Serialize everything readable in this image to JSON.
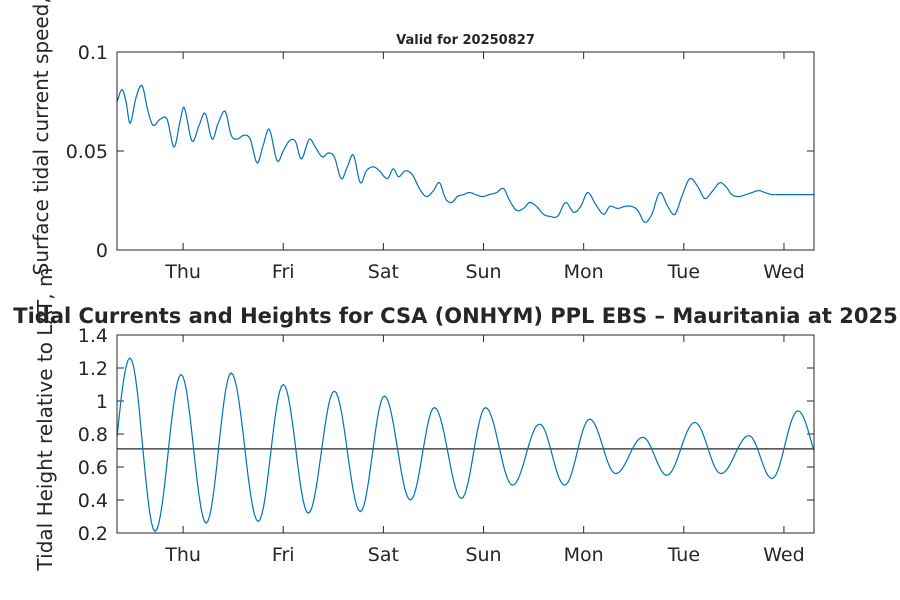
{
  "chart_data": [
    {
      "type": "line",
      "title": "Valid for 20250827",
      "ylabel": "Surface tidal current speed, kn",
      "ylim": [
        0,
        0.1
      ],
      "yticks": [
        0,
        0.05,
        0.1
      ],
      "ytick_labels": [
        "0",
        "0.05",
        "0.1"
      ],
      "xlim": [
        0,
        6.96
      ],
      "xticks": [
        0.66,
        1.66,
        2.66,
        3.66,
        4.66,
        5.66,
        6.66
      ],
      "xtick_labels": [
        "Thu",
        "Fri",
        "Sat",
        "Sun",
        "Mon",
        "Tue",
        "Wed"
      ],
      "grid": false,
      "series": [
        {
          "color": "#0072bd",
          "x": [
            0.0,
            0.05,
            0.09,
            0.13,
            0.19,
            0.25,
            0.31,
            0.36,
            0.43,
            0.5,
            0.57,
            0.63,
            0.67,
            0.75,
            0.82,
            0.88,
            0.95,
            1.01,
            1.08,
            1.14,
            1.2,
            1.27,
            1.33,
            1.4,
            1.46,
            1.52,
            1.6,
            1.66,
            1.72,
            1.78,
            1.84,
            1.92,
            1.98,
            2.05,
            2.11,
            2.17,
            2.24,
            2.3,
            2.36,
            2.43,
            2.49,
            2.56,
            2.62,
            2.7,
            2.76,
            2.81,
            2.88,
            2.95,
            3.02,
            3.09,
            3.16,
            3.22,
            3.28,
            3.34,
            3.4,
            3.46,
            3.52,
            3.58,
            3.65,
            3.72,
            3.79,
            3.86,
            3.92,
            3.99,
            4.06,
            4.12,
            4.19,
            4.26,
            4.32,
            4.4,
            4.48,
            4.56,
            4.63,
            4.7,
            4.78,
            4.86,
            4.92,
            5.0,
            5.07,
            5.14,
            5.2,
            5.27,
            5.34,
            5.42,
            5.5,
            5.57,
            5.64,
            5.72,
            5.8,
            5.87,
            5.95,
            6.02,
            6.08,
            6.14,
            6.21,
            6.28,
            6.34,
            6.41,
            6.47,
            6.54,
            6.61,
            6.67,
            6.74,
            6.81,
            6.86,
            6.96
          ],
          "y": [
            0.075,
            0.081,
            0.075,
            0.064,
            0.077,
            0.083,
            0.07,
            0.063,
            0.066,
            0.066,
            0.052,
            0.065,
            0.072,
            0.055,
            0.063,
            0.069,
            0.056,
            0.064,
            0.07,
            0.058,
            0.056,
            0.058,
            0.056,
            0.044,
            0.053,
            0.061,
            0.045,
            0.05,
            0.055,
            0.055,
            0.046,
            0.056,
            0.052,
            0.047,
            0.049,
            0.047,
            0.036,
            0.042,
            0.048,
            0.034,
            0.04,
            0.042,
            0.04,
            0.036,
            0.041,
            0.037,
            0.04,
            0.038,
            0.031,
            0.027,
            0.03,
            0.034,
            0.026,
            0.024,
            0.027,
            0.028,
            0.029,
            0.028,
            0.027,
            0.028,
            0.029,
            0.031,
            0.025,
            0.02,
            0.021,
            0.024,
            0.022,
            0.018,
            0.017,
            0.017,
            0.024,
            0.019,
            0.022,
            0.029,
            0.023,
            0.018,
            0.022,
            0.021,
            0.022,
            0.022,
            0.02,
            0.014,
            0.018,
            0.029,
            0.022,
            0.018,
            0.027,
            0.036,
            0.032,
            0.026,
            0.03,
            0.034,
            0.032,
            0.028,
            0.027,
            0.028,
            0.029,
            0.03,
            0.029,
            0.028,
            0.028,
            0.028,
            0.028,
            0.028,
            0.028,
            0.028
          ]
        }
      ]
    },
    {
      "type": "line",
      "title": "Tidal Currents and Heights for CSA (ONHYM) PPL EBS  – Mauritania at 2025",
      "ylabel": "Tidal Height relative to LAT, m",
      "ylim": [
        0.2,
        1.4
      ],
      "yticks": [
        0.2,
        0.4,
        0.6,
        0.8,
        1.0,
        1.2,
        1.4
      ],
      "ytick_labels": [
        "0.2",
        "0.4",
        "0.6",
        "0.8",
        "1",
        "1.2",
        "1.4"
      ],
      "xlim": [
        0,
        6.96
      ],
      "xticks": [
        0.66,
        1.66,
        2.66,
        3.66,
        4.66,
        5.66,
        6.66
      ],
      "xtick_labels": [
        "Thu",
        "Fri",
        "Sat",
        "Sun",
        "Mon",
        "Tue",
        "Wed"
      ],
      "grid": false,
      "reference_line": {
        "y": 0.71,
        "color": "#262626"
      },
      "series": [
        {
          "color": "#0072bd",
          "start_value": 0.78,
          "end_value": 0.84,
          "extrema_x": [
            0.13,
            0.38,
            0.64,
            0.89,
            1.14,
            1.41,
            1.66,
            1.91,
            2.17,
            2.43,
            2.67,
            2.93,
            3.17,
            3.44,
            3.68,
            3.95,
            4.22,
            4.47,
            4.72,
            4.98,
            5.25,
            5.49,
            5.77,
            6.03,
            6.31,
            6.54,
            6.8
          ],
          "extrema_y": [
            1.26,
            0.21,
            1.16,
            0.26,
            1.17,
            0.27,
            1.1,
            0.32,
            1.06,
            0.33,
            1.03,
            0.4,
            0.96,
            0.41,
            0.96,
            0.49,
            0.86,
            0.49,
            0.89,
            0.56,
            0.78,
            0.55,
            0.87,
            0.56,
            0.79,
            0.53,
            0.94
          ]
        }
      ]
    }
  ]
}
